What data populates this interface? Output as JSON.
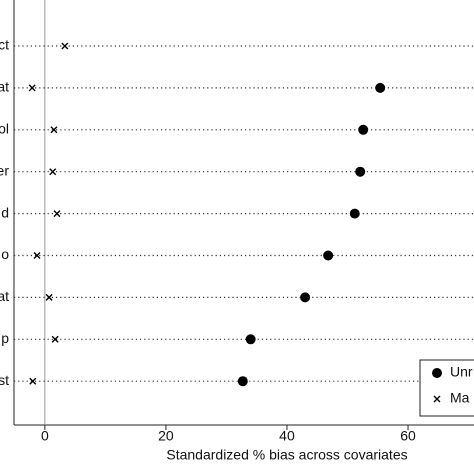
{
  "chart_data": {
    "type": "dot",
    "x_label": "Standardized % bias across covariates",
    "categories": [
      "ct",
      "at",
      "ol",
      "er",
      "d",
      "o",
      "at",
      "p",
      "st"
    ],
    "series": [
      {
        "name": "Unr",
        "color": "#000000",
        "marker": "circle",
        "values": [
          null,
          55.4,
          52.6,
          52.1,
          51.2,
          46.8,
          43.0,
          34.0,
          32.7
        ]
      },
      {
        "name": "Ma",
        "color": "#000000",
        "marker": "cross",
        "values": [
          3.3,
          -2.1,
          1.5,
          1.3,
          2.0,
          -1.3,
          0.7,
          1.7,
          -2.0
        ]
      }
    ],
    "xlim": [
      -5.1,
      70.9
    ],
    "xticks": [
      0,
      20,
      40,
      60
    ],
    "reference_line": 0,
    "legend": "lower right"
  }
}
